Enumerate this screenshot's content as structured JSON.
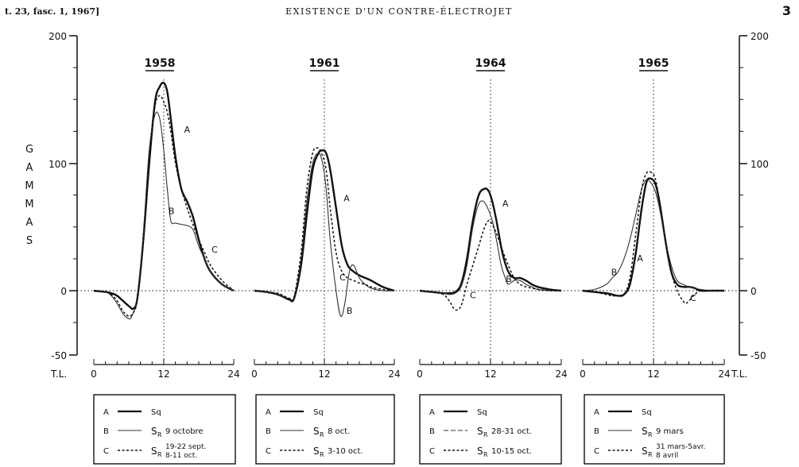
{
  "header": {
    "left": "t. 23, fasc. 1, 1967]",
    "title": "EXISTENCE D'UN CONTRE-ÉLECTROJET",
    "page_number": "3"
  },
  "chart_data": {
    "type": "line",
    "ylabel": "GAMMAS",
    "xlabel": "T.L.",
    "ylim": [
      -50,
      200
    ],
    "y_ticks": [
      "200",
      "100",
      "0",
      "-50"
    ],
    "x_ticks": [
      "0",
      "12",
      "24"
    ],
    "styles": {
      "A": "solid-thick",
      "B": "solid-thin",
      "C": "dotted"
    },
    "panels": [
      {
        "year": "1958",
        "series": [
          {
            "key": "A",
            "x": [
              0,
              2,
              3,
              4,
              5,
              6,
              6.8,
              7.5,
              8.5,
              9.5,
              10.5,
              11.3,
              12,
              12.6,
              13.2,
              14,
              15,
              16,
              17,
              18,
              19,
              20,
              22,
              24
            ],
            "y": [
              0,
              -1,
              -2,
              -4,
              -8,
              -12,
              -14,
              -5,
              40,
              100,
              148,
              160,
              163,
              156,
              135,
              105,
              80,
              70,
              58,
              40,
              25,
              15,
              5,
              0
            ]
          },
          {
            "key": "B",
            "x": [
              0,
              2,
              3,
              4,
              5,
              6,
              6.5,
              7.5,
              8.5,
              9.5,
              10.5,
              11.3,
              12,
              12.6,
              13.2,
              14,
              15,
              16,
              17,
              18,
              19,
              20,
              22,
              24
            ],
            "y": [
              0,
              -1,
              -4,
              -10,
              -18,
              -22,
              -20,
              -5,
              45,
              110,
              138,
              135,
              110,
              80,
              55,
              53,
              52,
              51,
              48,
              35,
              25,
              15,
              5,
              0
            ]
          },
          {
            "key": "C",
            "x": [
              0,
              2,
              3,
              4,
              5,
              6,
              6.8,
              7.5,
              8.5,
              9.5,
              10.5,
              11.3,
              12,
              12.6,
              13.2,
              14,
              15,
              16,
              17,
              18,
              19,
              20,
              22,
              24
            ],
            "y": [
              0,
              -1,
              -3,
              -8,
              -16,
              -20,
              -17,
              -6,
              40,
              105,
              145,
              153,
              148,
              140,
              125,
              100,
              80,
              65,
              52,
              40,
              30,
              20,
              8,
              0
            ]
          }
        ],
        "label_positions": [
          {
            "key": "A",
            "x": 15.5,
            "y": 124
          },
          {
            "key": "B",
            "x": 12.8,
            "y": 60
          },
          {
            "key": "C",
            "x": 20.2,
            "y": 30
          }
        ],
        "legend": {
          "A": "Sq",
          "B": "S_R 9 octobre",
          "C": "S_R 19-22 sept. 8-11 oct."
        }
      },
      {
        "year": "1961",
        "series": [
          {
            "key": "A",
            "x": [
              0,
              2,
              4,
              5,
              6,
              6.8,
              8,
              9,
              10,
              11,
              11.7,
              12.3,
              13,
              14,
              15,
              16,
              17,
              18,
              19,
              20,
              22,
              24
            ],
            "y": [
              0,
              -1,
              -3,
              -5,
              -7,
              -6,
              20,
              60,
              95,
              108,
              110,
              108,
              95,
              65,
              35,
              20,
              15,
              12,
              10,
              8,
              3,
              0
            ]
          },
          {
            "key": "B",
            "x": [
              0,
              2,
              4,
              5,
              6,
              6.8,
              8,
              9,
              10,
              11,
              11.7,
              12.3,
              13,
              14,
              14.8,
              15.5,
              16.3,
              17,
              18,
              19,
              20,
              22,
              24
            ],
            "y": [
              0,
              -1,
              -3,
              -5,
              -6,
              -5,
              25,
              70,
              100,
              108,
              100,
              80,
              40,
              0,
              -20,
              -10,
              15,
              20,
              10,
              5,
              2,
              0,
              0
            ]
          },
          {
            "key": "C",
            "x": [
              0,
              2,
              4,
              5,
              6,
              6.8,
              8,
              9,
              10,
              10.8,
              11.5,
              12.3,
              13,
              14,
              15,
              16,
              17,
              18,
              19,
              20,
              22,
              24
            ],
            "y": [
              0,
              -1,
              -2,
              -4,
              -6,
              -5,
              30,
              80,
              108,
              112,
              108,
              95,
              65,
              30,
              15,
              10,
              8,
              6,
              5,
              3,
              1,
              0
            ]
          }
        ],
        "label_positions": [
          {
            "key": "A",
            "x": 15.3,
            "y": 70
          },
          {
            "key": "B",
            "x": 15.8,
            "y": -18
          },
          {
            "key": "C",
            "x": 14.6,
            "y": 8
          }
        ],
        "legend": {
          "A": "Sq",
          "B": "S_R 8 oct.",
          "C": "S_R 3-10 oct."
        }
      },
      {
        "year": "1964",
        "series": [
          {
            "key": "A",
            "x": [
              0,
              2,
              4,
              5,
              6,
              7,
              8,
              9,
              10,
              11,
              11.7,
              12.3,
              13,
              14,
              15,
              16,
              17,
              18,
              19,
              20,
              22,
              24
            ],
            "y": [
              0,
              -1,
              -2,
              -2,
              -1,
              5,
              25,
              55,
              75,
              80,
              78,
              70,
              55,
              30,
              15,
              10,
              10,
              8,
              5,
              3,
              1,
              0
            ]
          },
          {
            "key": "B",
            "x": [
              0,
              2,
              4,
              5,
              6,
              7,
              8,
              9,
              10,
              10.8,
              11.5,
              12.3,
              13,
              13.8,
              14.5,
              15,
              16,
              17,
              18,
              19,
              20,
              22,
              24
            ],
            "y": [
              0,
              -1,
              -2,
              -3,
              -2,
              3,
              20,
              50,
              68,
              70,
              65,
              55,
              40,
              20,
              10,
              5,
              8,
              8,
              5,
              3,
              1,
              0,
              0
            ]
          },
          {
            "key": "C",
            "x": [
              0,
              2,
              4,
              5,
              6,
              7,
              8,
              9,
              10,
              11,
              11.7,
              12.3,
              13,
              14,
              15,
              16,
              17,
              18,
              19,
              20,
              22,
              24
            ],
            "y": [
              0,
              -1,
              -3,
              -8,
              -15,
              -12,
              5,
              20,
              35,
              50,
              55,
              52,
              45,
              32,
              20,
              10,
              5,
              3,
              2,
              1,
              0,
              0
            ]
          }
        ],
        "label_positions": [
          {
            "key": "A",
            "x": 14.0,
            "y": 66
          },
          {
            "key": "B",
            "x": 14.6,
            "y": 7
          },
          {
            "key": "C",
            "x": 8.5,
            "y": -6
          }
        ],
        "legend": {
          "A": "Sq",
          "B": "S_R 28-31 oct.",
          "C": "S_R 10-15 oct."
        }
      },
      {
        "year": "1965",
        "series": [
          {
            "key": "A",
            "x": [
              0,
              2,
              4,
              5,
              6,
              7,
              8,
              9,
              10,
              10.8,
              11.5,
              12.3,
              13,
              14,
              15,
              16,
              17,
              18,
              19,
              20,
              22,
              24
            ],
            "y": [
              0,
              -1,
              -2,
              -3,
              -4,
              -3,
              5,
              30,
              65,
              85,
              88,
              84,
              70,
              40,
              15,
              5,
              3,
              3,
              2,
              0,
              0,
              0
            ]
          },
          {
            "key": "B",
            "x": [
              0,
              2,
              4,
              5,
              6,
              7,
              8,
              9,
              10,
              10.8,
              11.5,
              12.3,
              13,
              14,
              15,
              16,
              17,
              18,
              19,
              20,
              22,
              24
            ],
            "y": [
              0,
              1,
              5,
              10,
              15,
              25,
              40,
              60,
              80,
              87,
              85,
              78,
              65,
              40,
              20,
              8,
              5,
              3,
              2,
              1,
              0,
              0
            ]
          },
          {
            "key": "C",
            "x": [
              0,
              2,
              4,
              5,
              6,
              7,
              8,
              9,
              10,
              10.8,
              11.5,
              12.3,
              13,
              14,
              15,
              16,
              17,
              17.5,
              18,
              19,
              20,
              22,
              24
            ],
            "y": [
              0,
              -1,
              -3,
              -4,
              -4,
              -3,
              10,
              45,
              80,
              92,
              93,
              88,
              70,
              40,
              15,
              0,
              -8,
              -10,
              -8,
              -3,
              0,
              0,
              0
            ]
          }
        ],
        "label_positions": [
          {
            "key": "A",
            "x": 9.2,
            "y": 23
          },
          {
            "key": "B",
            "x": 4.8,
            "y": 12
          },
          {
            "key": "C",
            "x": 18.2,
            "y": -8
          }
        ],
        "legend": {
          "A": "Sq",
          "B": "S_R 9 mars",
          "C": "S_R 31 mars-5 avr. 8 avril"
        }
      }
    ]
  },
  "legends": [
    {
      "a": "Sq",
      "b": "9 octobre",
      "c1": "19-22 sept.",
      "c2": "8-11 oct."
    },
    {
      "a": "Sq",
      "b": "8 oct.",
      "c": "3-10 oct."
    },
    {
      "a": "Sq",
      "b": "28-31 oct.",
      "c": "10-15 oct."
    },
    {
      "a": "Sq",
      "b": "9 mars",
      "c1": "31 mars-5avr.",
      "c2": "8 avril"
    }
  ],
  "legend_keys": {
    "a": "A",
    "b": "B",
    "c": "C",
    "sr": "S",
    "sr_sub": "R"
  }
}
